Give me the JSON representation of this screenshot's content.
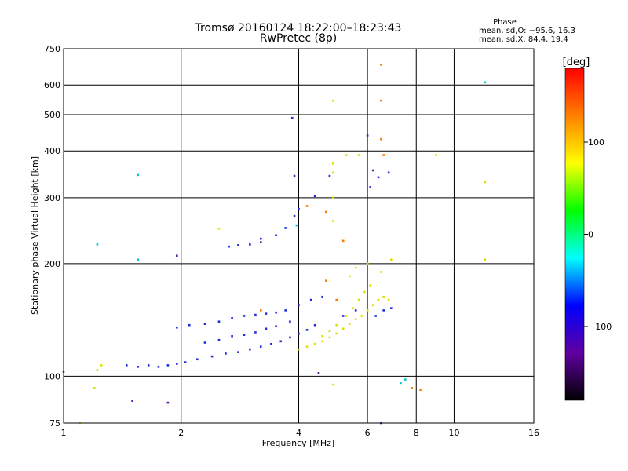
{
  "chart_data": {
    "type": "scatter",
    "title": "Tromsø 20160124 18:22:00–18:23:43",
    "subtitle": "RwPretec (8p)",
    "xlabel": "Frequency [MHz]",
    "ylabel": "Stationary phase Virtual Height [km]",
    "xscale": "log",
    "yscale": "log",
    "xlim": [
      1,
      16
    ],
    "ylim": [
      75,
      750
    ],
    "x_ticks": [
      1,
      2,
      4,
      6,
      8,
      10,
      16
    ],
    "y_ticks": [
      75,
      100,
      200,
      300,
      400,
      500,
      600,
      750
    ],
    "grid": true,
    "stats_title": "Phase",
    "stats_lines": [
      "mean, sd,O: −95.6, 16.3",
      "mean, sd,X: 84.4, 19.4"
    ],
    "colorbar": {
      "label": "[deg]",
      "range": [
        -180,
        180
      ],
      "ticks": [
        100,
        0,
        -100
      ],
      "colors": [
        "#ff0000",
        "#ff8000",
        "#ffff00",
        "#00ff00",
        "#00ffff",
        "#0000ff",
        "#6000a0",
        "#000000"
      ]
    },
    "series": [
      {
        "group": "O-trace (blue)",
        "color": "#1f2fe0",
        "points": [
          [
            1.45,
            107
          ],
          [
            1.55,
            106
          ],
          [
            1.65,
            107
          ],
          [
            1.75,
            106
          ],
          [
            1.85,
            107
          ],
          [
            1.95,
            108
          ],
          [
            2.05,
            109
          ],
          [
            2.2,
            111
          ],
          [
            2.4,
            113
          ],
          [
            2.6,
            115
          ],
          [
            2.8,
            116
          ],
          [
            3.0,
            118
          ],
          [
            3.2,
            120
          ],
          [
            3.4,
            122
          ],
          [
            3.6,
            124
          ],
          [
            3.8,
            127
          ],
          [
            4.0,
            130
          ],
          [
            4.2,
            133
          ],
          [
            4.4,
            137
          ],
          [
            1.95,
            135
          ],
          [
            2.1,
            137
          ],
          [
            2.3,
            138
          ],
          [
            2.5,
            140
          ],
          [
            2.7,
            143
          ],
          [
            2.9,
            145
          ],
          [
            3.1,
            146
          ],
          [
            3.3,
            147
          ],
          [
            3.5,
            148
          ],
          [
            3.7,
            150
          ],
          [
            2.3,
            123
          ],
          [
            2.5,
            125
          ],
          [
            2.7,
            128
          ],
          [
            2.9,
            129
          ],
          [
            3.1,
            131
          ],
          [
            3.3,
            134
          ],
          [
            3.5,
            136
          ],
          [
            3.8,
            140
          ],
          [
            4.0,
            155
          ],
          [
            4.3,
            160
          ],
          [
            4.6,
            163
          ],
          [
            3.0,
            225
          ],
          [
            3.2,
            233
          ],
          [
            3.5,
            238
          ],
          [
            3.7,
            249
          ],
          [
            3.9,
            268
          ],
          [
            4.0,
            280
          ],
          [
            4.4,
            303
          ],
          [
            4.8,
            343
          ],
          [
            3.9,
            343
          ],
          [
            3.85,
            490
          ],
          [
            6.1,
            320
          ],
          [
            6.4,
            340
          ],
          [
            6.8,
            350
          ],
          [
            2.65,
            222
          ],
          [
            2.8,
            224
          ],
          [
            6.3,
            145
          ],
          [
            6.6,
            150
          ],
          [
            6.9,
            152
          ],
          [
            5.6,
            150
          ],
          [
            5.2,
            145
          ]
        ]
      },
      {
        "group": "X-trace (yellow/orange)",
        "color": "#e0e000",
        "points": [
          [
            4.0,
            118
          ],
          [
            4.2,
            120
          ],
          [
            4.4,
            122
          ],
          [
            4.6,
            124
          ],
          [
            4.8,
            127
          ],
          [
            5.0,
            130
          ],
          [
            5.2,
            134
          ],
          [
            5.4,
            138
          ],
          [
            5.6,
            142
          ],
          [
            5.8,
            145
          ],
          [
            6.0,
            150
          ],
          [
            6.2,
            155
          ],
          [
            6.4,
            160
          ],
          [
            6.6,
            163
          ],
          [
            6.8,
            160
          ],
          [
            4.6,
            128
          ],
          [
            4.8,
            132
          ],
          [
            5.0,
            137
          ],
          [
            5.3,
            145
          ],
          [
            5.5,
            152
          ],
          [
            5.7,
            160
          ],
          [
            5.9,
            168
          ],
          [
            6.1,
            175
          ],
          [
            5.4,
            185
          ],
          [
            5.6,
            195
          ],
          [
            6.0,
            200
          ],
          [
            6.9,
            205
          ],
          [
            6.5,
            190
          ],
          [
            4.9,
            260
          ],
          [
            4.9,
            300
          ],
          [
            4.9,
            350
          ],
          [
            4.9,
            370
          ],
          [
            5.3,
            390
          ],
          [
            5.7,
            390
          ],
          [
            1.25,
            107
          ],
          [
            1.22,
            104
          ],
          [
            1.2,
            93
          ],
          [
            1.1,
            75
          ],
          [
            2.5,
            248
          ],
          [
            9.0,
            390
          ],
          [
            12,
            330
          ],
          [
            12,
            205
          ],
          [
            4.9,
            545
          ],
          [
            4.9,
            95
          ]
        ]
      },
      {
        "group": "Outliers (orange/red)",
        "color": "#ff7a00",
        "points": [
          [
            6.5,
            545
          ],
          [
            6.5,
            430
          ],
          [
            5.2,
            230
          ],
          [
            4.7,
            275
          ],
          [
            4.2,
            285
          ],
          [
            7.8,
            93
          ],
          [
            8.2,
            92
          ],
          [
            6.5,
            680
          ],
          [
            6.6,
            390
          ],
          [
            3.2,
            150
          ],
          [
            5.0,
            160
          ],
          [
            4.7,
            180
          ]
        ]
      },
      {
        "group": "Outliers (violet/dark)",
        "color": "#5a1aa0",
        "points": [
          [
            1.95,
            210
          ],
          [
            1.85,
            85
          ],
          [
            1.0,
            103
          ],
          [
            1.5,
            86
          ],
          [
            3.2,
            228
          ],
          [
            4.5,
            102
          ],
          [
            6.5,
            75
          ],
          [
            6.0,
            440
          ],
          [
            6.2,
            355
          ]
        ]
      },
      {
        "group": "Outliers (cyan/green)",
        "color": "#00c8c8",
        "points": [
          [
            1.55,
            345
          ],
          [
            1.55,
            205
          ],
          [
            1.22,
            225
          ],
          [
            12,
            610
          ],
          [
            7.3,
            96
          ],
          [
            7.5,
            98
          ],
          [
            3.95,
            253
          ]
        ]
      }
    ]
  }
}
